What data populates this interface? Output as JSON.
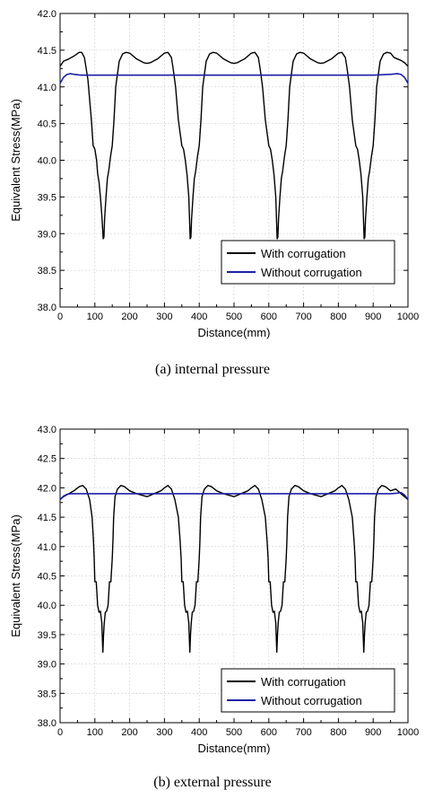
{
  "chart_data": [
    {
      "type": "line",
      "caption": "(a)  internal  pressure",
      "xlabel": "Distance(mm)",
      "ylabel": "Equivalent Stress(MPa)",
      "xlim": [
        0,
        1000
      ],
      "ylim": [
        38.0,
        42.0
      ],
      "xticks": [
        "0",
        "100",
        "200",
        "300",
        "400",
        "500",
        "600",
        "700",
        "800",
        "900",
        "1000"
      ],
      "yticks": [
        "38.0",
        "38.5",
        "39.0",
        "39.5",
        "40.0",
        "40.5",
        "41.0",
        "41.5",
        "42.0"
      ],
      "grid": true,
      "legend_position": "bottom-right",
      "series": [
        {
          "name": "With corrugation",
          "color": "#000000",
          "x": [
            0,
            10,
            25,
            40,
            55,
            62,
            70,
            80,
            90,
            95,
            100,
            105,
            108,
            112,
            116,
            120,
            124,
            126,
            128,
            132,
            136,
            140,
            145,
            150,
            155,
            160,
            170,
            180,
            190,
            200,
            220,
            240,
            250,
            260,
            280,
            300,
            310,
            320,
            325,
            332,
            340,
            350,
            355,
            360,
            365,
            370,
            374,
            376,
            378,
            382,
            386,
            390,
            395,
            400,
            405,
            410,
            420,
            430,
            440,
            450,
            470,
            490,
            500,
            510,
            530,
            550,
            560,
            570,
            575,
            582,
            590,
            600,
            605,
            610,
            615,
            620,
            624,
            626,
            628,
            632,
            636,
            640,
            645,
            650,
            655,
            660,
            670,
            680,
            690,
            700,
            720,
            740,
            750,
            760,
            780,
            800,
            810,
            820,
            825,
            832,
            840,
            850,
            855,
            860,
            865,
            870,
            874,
            876,
            878,
            882,
            886,
            890,
            895,
            900,
            905,
            910,
            920,
            930,
            940,
            950,
            960,
            970,
            980,
            990,
            1000
          ],
          "values": [
            41.28,
            41.35,
            41.38,
            41.42,
            41.47,
            41.47,
            41.4,
            41.1,
            40.55,
            40.2,
            40.15,
            40.0,
            39.82,
            39.7,
            39.5,
            39.25,
            38.93,
            38.95,
            39.2,
            39.5,
            39.75,
            39.86,
            40.05,
            40.2,
            40.55,
            41.0,
            41.35,
            41.45,
            41.47,
            41.46,
            41.38,
            41.33,
            41.32,
            41.33,
            41.38,
            41.46,
            41.47,
            41.4,
            41.25,
            41.0,
            40.55,
            40.2,
            40.15,
            40.0,
            39.8,
            39.5,
            38.93,
            38.95,
            39.2,
            39.5,
            39.75,
            39.86,
            40.05,
            40.2,
            40.55,
            41.0,
            41.35,
            41.45,
            41.47,
            41.46,
            41.38,
            41.33,
            41.32,
            41.33,
            41.38,
            41.46,
            41.47,
            41.4,
            41.25,
            41.0,
            40.55,
            40.2,
            40.15,
            40.0,
            39.8,
            39.5,
            38.93,
            38.95,
            39.2,
            39.5,
            39.75,
            39.86,
            40.05,
            40.2,
            40.55,
            41.0,
            41.35,
            41.45,
            41.47,
            41.46,
            41.38,
            41.33,
            41.32,
            41.33,
            41.38,
            41.46,
            41.47,
            41.4,
            41.25,
            41.0,
            40.55,
            40.2,
            40.15,
            40.0,
            39.8,
            39.5,
            38.93,
            38.95,
            39.2,
            39.5,
            39.75,
            39.86,
            40.05,
            40.2,
            40.55,
            41.0,
            41.35,
            41.45,
            41.47,
            41.46,
            41.4,
            41.38,
            41.36,
            41.33,
            41.28
          ]
        },
        {
          "name": "Without corrugation",
          "color": "#1f1fa8",
          "x": [
            0,
            10,
            20,
            30,
            40,
            60,
            100,
            200,
            300,
            400,
            500,
            600,
            700,
            800,
            900,
            950,
            970,
            980,
            990,
            1000
          ],
          "values": [
            41.05,
            41.13,
            41.17,
            41.18,
            41.17,
            41.16,
            41.16,
            41.16,
            41.16,
            41.16,
            41.16,
            41.16,
            41.16,
            41.16,
            41.16,
            41.17,
            41.18,
            41.17,
            41.13,
            41.05
          ]
        }
      ]
    },
    {
      "type": "line",
      "caption": "(b)  external  pressure",
      "xlabel": "Distance(mm)",
      "ylabel": "Equivalent Stress(MPa)",
      "xlim": [
        0,
        1000
      ],
      "ylim": [
        38.0,
        43.0
      ],
      "xticks": [
        "0",
        "100",
        "200",
        "300",
        "400",
        "500",
        "600",
        "700",
        "800",
        "900",
        "1000"
      ],
      "yticks": [
        "38.0",
        "38.5",
        "39.0",
        "39.5",
        "40.0",
        "40.5",
        "41.0",
        "41.5",
        "42.0",
        "42.5",
        "43.0"
      ],
      "grid": true,
      "legend_position": "bottom-right",
      "series": [
        {
          "name": "With corrugation",
          "color": "#000000",
          "x": [
            0,
            10,
            25,
            40,
            55,
            65,
            75,
            85,
            92,
            96,
            98,
            100,
            104,
            108,
            112,
            116,
            120,
            123,
            125,
            127,
            130,
            134,
            138,
            142,
            146,
            150,
            152,
            154,
            158,
            165,
            175,
            185,
            200,
            220,
            250,
            270,
            290,
            300,
            310,
            320,
            330,
            340,
            345,
            348,
            350,
            352,
            354,
            358,
            362,
            366,
            370,
            373,
            375,
            377,
            380,
            384,
            388,
            392,
            396,
            400,
            402,
            404,
            408,
            415,
            425,
            435,
            450,
            470,
            500,
            520,
            540,
            550,
            560,
            570,
            580,
            590,
            595,
            598,
            600,
            602,
            604,
            608,
            612,
            616,
            620,
            623,
            625,
            627,
            630,
            634,
            638,
            642,
            646,
            650,
            652,
            654,
            658,
            665,
            675,
            685,
            700,
            720,
            750,
            770,
            790,
            800,
            810,
            820,
            830,
            840,
            845,
            848,
            850,
            852,
            854,
            858,
            862,
            866,
            870,
            873,
            875,
            877,
            880,
            884,
            888,
            892,
            896,
            900,
            902,
            904,
            908,
            915,
            925,
            935,
            950,
            965,
            980,
            990,
            1000
          ],
          "values": [
            41.8,
            41.85,
            41.9,
            41.95,
            42.02,
            42.04,
            41.98,
            41.8,
            41.5,
            41.1,
            40.8,
            40.4,
            40.4,
            40.0,
            39.88,
            39.9,
            39.7,
            39.2,
            39.5,
            39.7,
            39.88,
            39.9,
            40.0,
            40.4,
            40.4,
            40.8,
            41.1,
            41.5,
            41.85,
            41.98,
            42.04,
            42.02,
            41.95,
            41.9,
            41.85,
            41.9,
            41.95,
            42.0,
            42.04,
            41.98,
            41.8,
            41.5,
            41.1,
            40.8,
            40.4,
            40.4,
            40.4,
            40.0,
            39.88,
            39.9,
            39.7,
            39.2,
            39.5,
            39.7,
            39.88,
            39.9,
            40.0,
            40.4,
            40.4,
            40.8,
            41.1,
            41.5,
            41.85,
            41.98,
            42.04,
            42.02,
            41.95,
            41.9,
            41.85,
            41.9,
            41.95,
            42.0,
            42.04,
            41.98,
            41.8,
            41.5,
            41.1,
            40.8,
            40.4,
            40.4,
            40.4,
            40.0,
            39.88,
            39.9,
            39.7,
            39.2,
            39.5,
            39.7,
            39.88,
            39.9,
            40.0,
            40.4,
            40.4,
            40.8,
            41.1,
            41.5,
            41.85,
            41.98,
            42.04,
            42.02,
            41.95,
            41.9,
            41.85,
            41.9,
            41.95,
            42.0,
            42.04,
            41.98,
            41.8,
            41.5,
            41.1,
            40.8,
            40.4,
            40.4,
            40.4,
            40.0,
            39.88,
            39.9,
            39.7,
            39.2,
            39.5,
            39.7,
            39.88,
            39.9,
            40.0,
            40.4,
            40.4,
            40.8,
            41.1,
            41.5,
            41.85,
            41.98,
            42.04,
            42.02,
            41.95,
            41.98,
            41.9,
            41.85,
            41.8
          ]
        },
        {
          "name": "Without corrugation",
          "color": "#1f1fa8",
          "x": [
            0,
            10,
            20,
            30,
            50,
            100,
            200,
            300,
            400,
            500,
            600,
            700,
            800,
            850,
            900,
            950,
            970,
            980,
            990,
            1000
          ],
          "values": [
            41.8,
            41.86,
            41.89,
            41.9,
            41.9,
            41.9,
            41.9,
            41.9,
            41.9,
            41.9,
            41.9,
            41.9,
            41.9,
            41.9,
            41.9,
            41.9,
            41.91,
            41.92,
            41.88,
            41.8
          ]
        }
      ]
    }
  ]
}
